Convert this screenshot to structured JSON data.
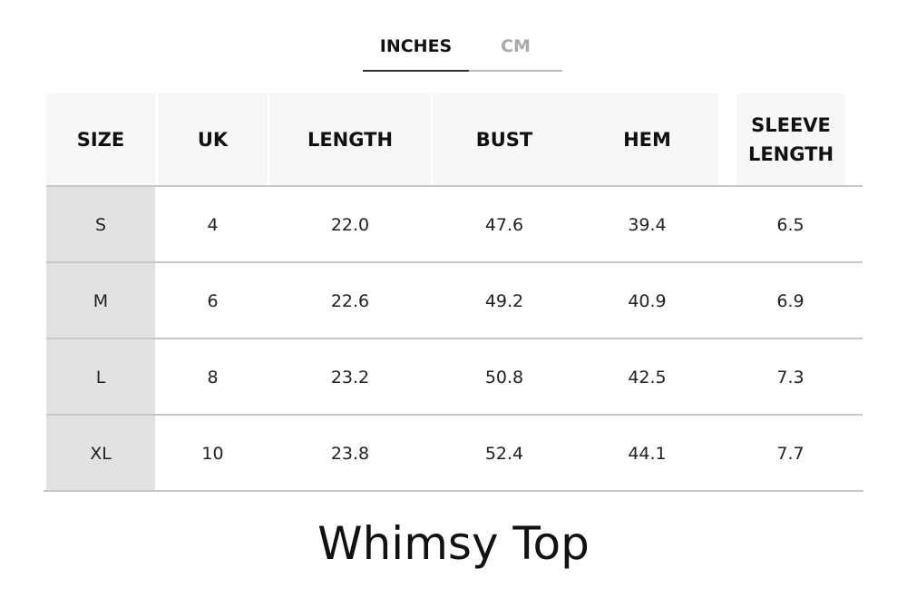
{
  "tabs": [
    {
      "label": "INCHES",
      "active": true
    },
    {
      "label": "CM",
      "active": false
    }
  ],
  "table": {
    "headers": [
      "SIZE",
      "UK",
      "LENGTH",
      "BUST",
      "HEM",
      "SLEEVE LENGTH"
    ],
    "rows": [
      [
        "S",
        "4",
        "22.0",
        "47.6",
        "39.4",
        "6.5"
      ],
      [
        "M",
        "6",
        "22.6",
        "49.2",
        "40.9",
        "6.9"
      ],
      [
        "L",
        "8",
        "23.2",
        "50.8",
        "42.5",
        "7.3"
      ],
      [
        "XL",
        "10",
        "23.8",
        "52.4",
        "44.1",
        "7.7"
      ]
    ]
  },
  "title": "Whimsy Top"
}
